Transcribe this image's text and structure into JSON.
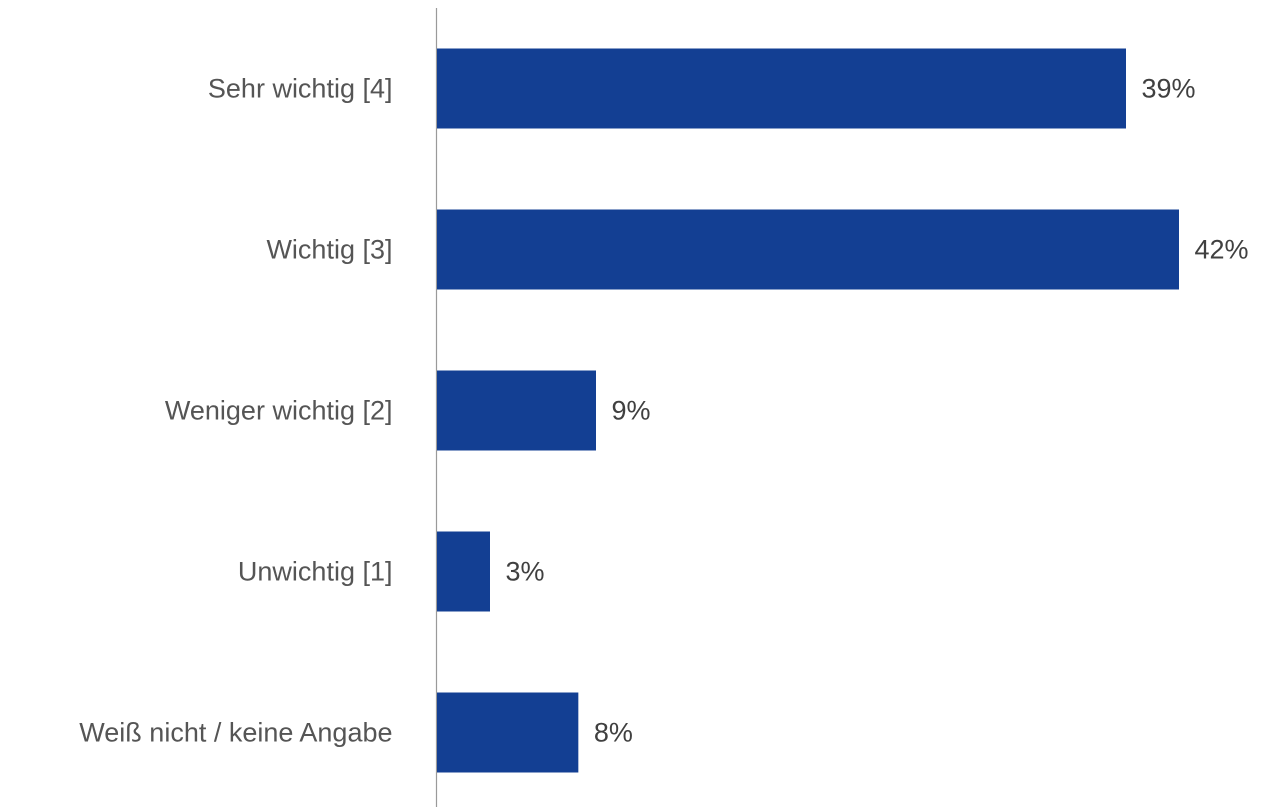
{
  "chart_data": {
    "type": "bar",
    "orientation": "horizontal",
    "categories": [
      "Sehr wichtig [4]",
      "Wichtig [3]",
      "Weniger wichtig [2]",
      "Unwichtig [1]",
      "Weiß nicht / keine Angabe"
    ],
    "values": [
      39,
      42,
      9,
      3,
      8
    ],
    "value_labels": [
      "39%",
      "42%",
      "9%",
      "3%",
      "8%"
    ],
    "unit": "%",
    "xlim": [
      0,
      42
    ],
    "title": "",
    "xlabel": "",
    "ylabel": "",
    "grid": false,
    "legend": "none",
    "colors": {
      "bar": "#133F93",
      "axis": "#9A9A9A",
      "category_text": "#555555",
      "value_text": "#404040"
    }
  }
}
